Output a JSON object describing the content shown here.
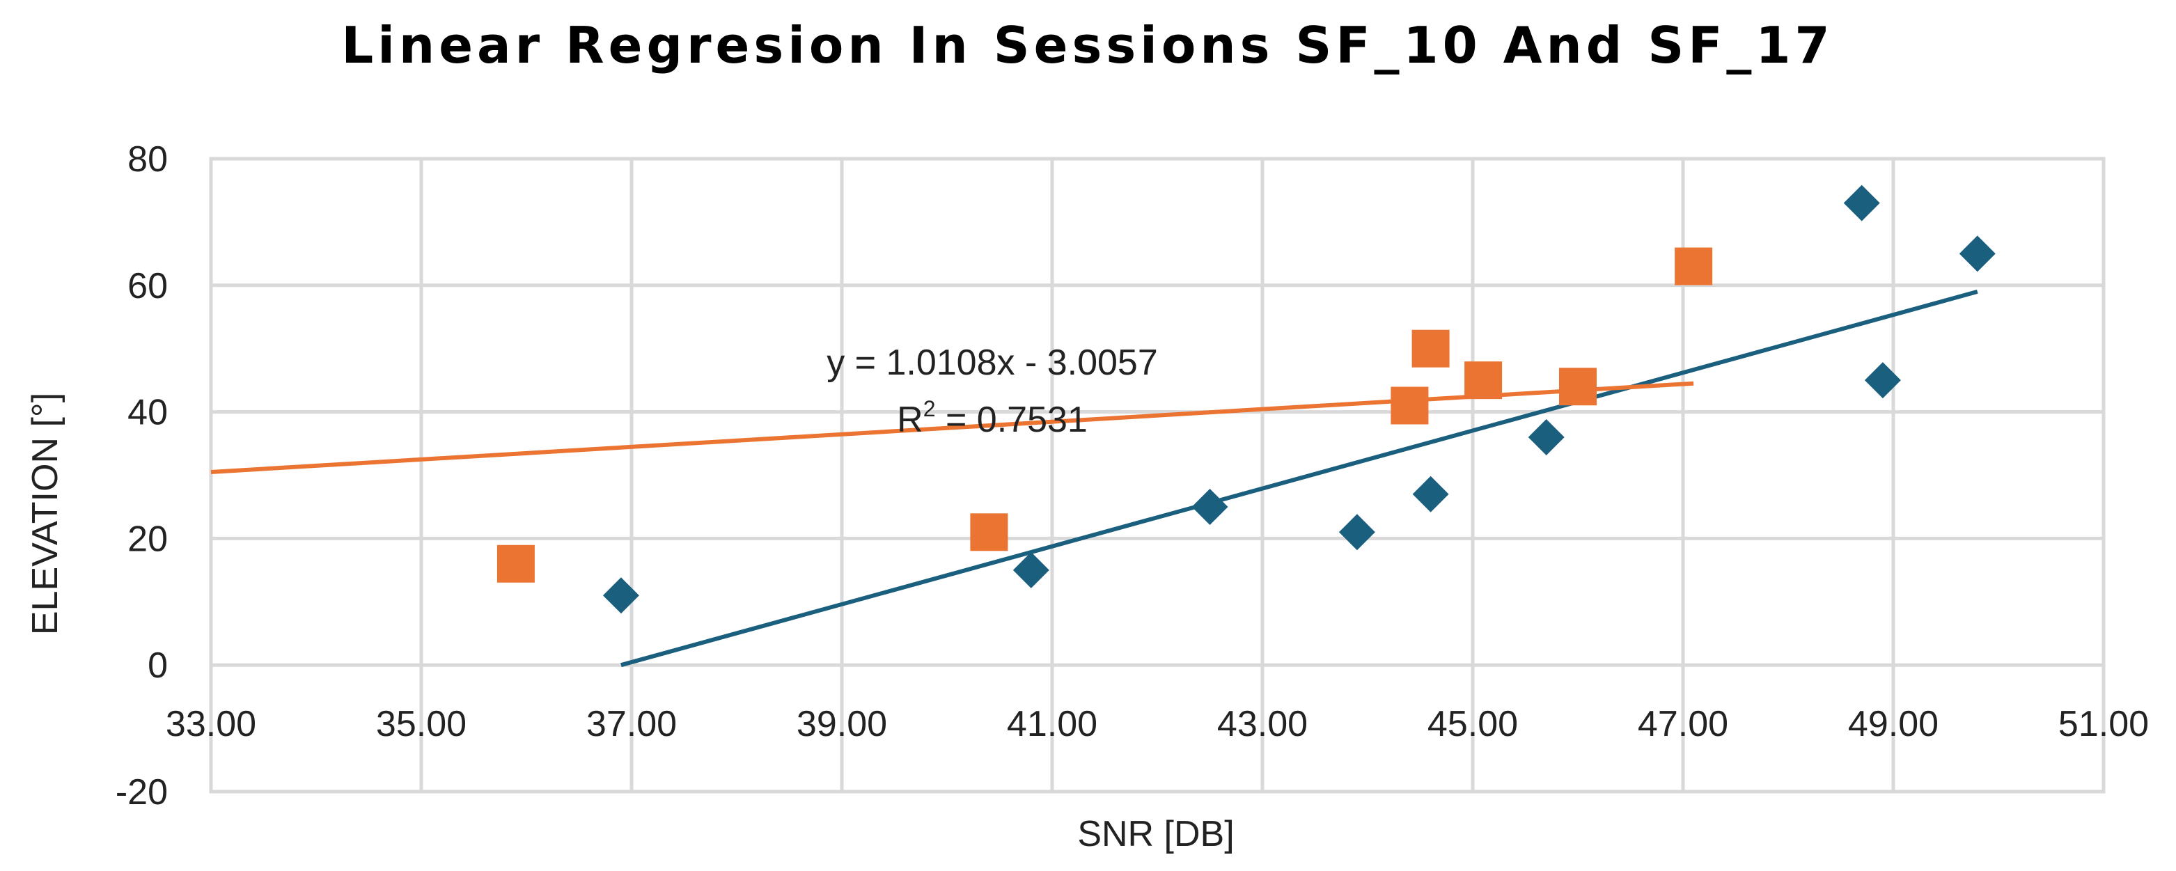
{
  "chart_data": {
    "type": "scatter",
    "title": "Linear Regresion In Sessions SF_10 And SF_17",
    "xlabel": "SNR [DB]",
    "ylabel": "ELEVATION [°]",
    "xlim": [
      33,
      51
    ],
    "ylim": [
      -20,
      80
    ],
    "x_ticks": [
      "33.00",
      "35.00",
      "37.00",
      "39.00",
      "41.00",
      "43.00",
      "45.00",
      "47.00",
      "49.00",
      "51.00"
    ],
    "y_ticks": [
      "-20",
      "0",
      "20",
      "40",
      "60",
      "80"
    ],
    "x_tick_values": [
      33,
      35,
      37,
      39,
      41,
      43,
      45,
      47,
      49,
      51
    ],
    "y_tick_values": [
      -20,
      0,
      20,
      40,
      60,
      80
    ],
    "grid": true,
    "series": [
      {
        "name": "SF_10",
        "marker": "diamond",
        "color": "#1b5f7f",
        "points": [
          [
            36.9,
            11
          ],
          [
            40.8,
            15
          ],
          [
            42.5,
            25
          ],
          [
            43.9,
            21
          ],
          [
            44.6,
            27
          ],
          [
            45.7,
            36
          ],
          [
            48.7,
            73
          ],
          [
            48.9,
            45
          ],
          [
            49.8,
            65
          ]
        ],
        "trendline": {
          "x": [
            36.9,
            49.8
          ],
          "y": [
            0,
            59
          ]
        }
      },
      {
        "name": "SF_17",
        "marker": "square",
        "color": "#ec7433",
        "points": [
          [
            35.9,
            16
          ],
          [
            40.4,
            21
          ],
          [
            44.4,
            41
          ],
          [
            44.6,
            50
          ],
          [
            45.1,
            45
          ],
          [
            46.0,
            44
          ],
          [
            47.1,
            63
          ]
        ],
        "trendline": {
          "x": [
            33.0,
            47.1
          ],
          "y": [
            30.5,
            44.5
          ]
        }
      }
    ],
    "annotation": {
      "equation": "y = 1.0108x - 3.0057",
      "r2_label": "R",
      "r2_sup": "2",
      "r2_value": " = 0.7531"
    }
  }
}
